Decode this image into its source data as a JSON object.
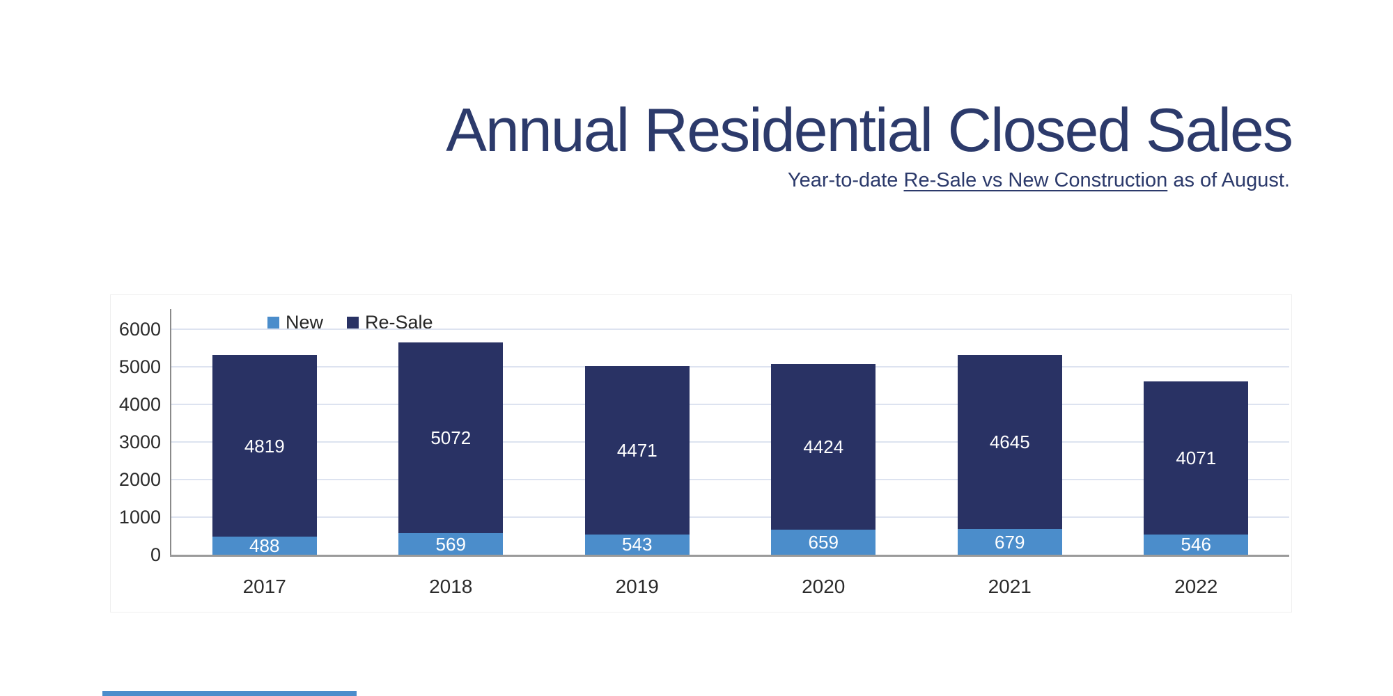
{
  "page": {
    "title": "Annual Residential Closed Sales",
    "subtitle_prefix": "Year-to-date ",
    "subtitle_underlined": "Re-Sale vs New Construction",
    "subtitle_suffix": " as of August."
  },
  "colors": {
    "title_text": "#2C3A6B",
    "new_series": "#4B8DCB",
    "resale_series": "#293264",
    "gridline": "#dde3f0",
    "axis_line": "#9a9a9a",
    "axis_text": "#2b2b2b",
    "bar_label_text": "#ffffff"
  },
  "chart_data": {
    "type": "bar",
    "stacked": true,
    "title": "Annual Residential Closed Sales",
    "subtitle": "Year-to-date Re-Sale vs New Construction as of August.",
    "categories": [
      "2017",
      "2018",
      "2019",
      "2020",
      "2021",
      "2022"
    ],
    "series": [
      {
        "name": "New",
        "color": "#4B8DCB",
        "values": [
          488,
          569,
          543,
          659,
          679,
          546
        ]
      },
      {
        "name": "Re-Sale",
        "color": "#293264",
        "values": [
          4819,
          5072,
          4471,
          4424,
          4645,
          4071
        ]
      }
    ],
    "totals": [
      5307,
      5641,
      5014,
      5083,
      5324,
      4617
    ],
    "xlabel": "",
    "ylabel": "",
    "yticks": [
      0,
      1000,
      2000,
      3000,
      4000,
      5000,
      6000
    ],
    "ylim": [
      0,
      6600
    ],
    "grid": true,
    "legend_position": "top"
  }
}
